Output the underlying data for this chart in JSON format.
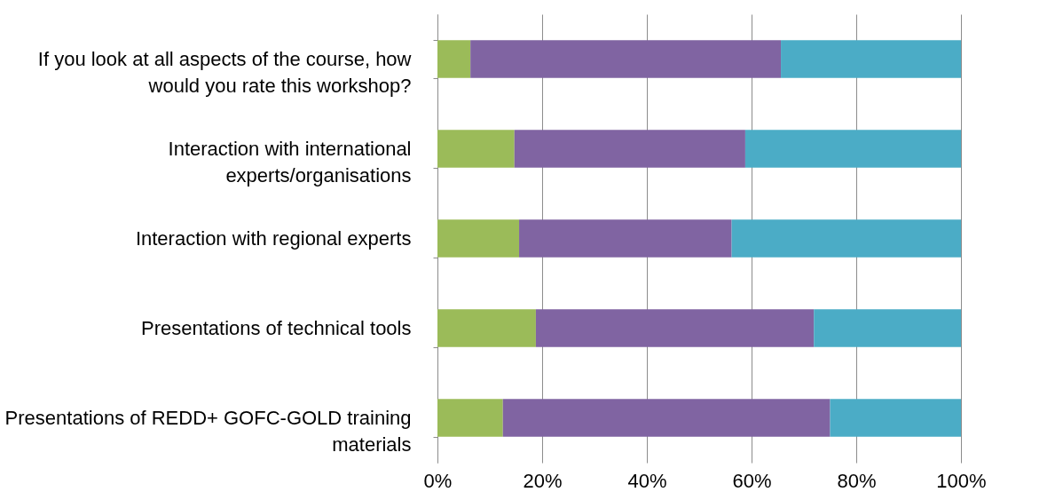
{
  "chart_data": {
    "type": "bar",
    "orientation": "horizontal",
    "stacked": true,
    "categories": [
      "If you look at all aspects of the course, how would you rate this workshop?",
      "Interaction with international experts/organisations",
      "Interaction with regional experts",
      "Presentations of technical tools",
      "Presentations of REDD+ GOFC-GOLD training materials"
    ],
    "series": [
      {
        "color": "#9bbb59",
        "values": [
          6.3,
          14.7,
          15.6,
          18.8,
          12.5
        ]
      },
      {
        "color": "#8064a2",
        "values": [
          59.3,
          44.1,
          40.6,
          53.1,
          62.5
        ]
      },
      {
        "color": "#4bacc6",
        "values": [
          34.4,
          41.2,
          43.8,
          28.1,
          25.0
        ]
      }
    ],
    "xlim": [
      0,
      100
    ],
    "xticks": [
      {
        "value": 0,
        "label": "0%"
      },
      {
        "value": 20,
        "label": "20%"
      },
      {
        "value": 40,
        "label": "40%"
      },
      {
        "value": 60,
        "label": "60%"
      },
      {
        "value": 80,
        "label": "80%"
      },
      {
        "value": 100,
        "label": "100%"
      }
    ],
    "grid": "x",
    "legend": false
  }
}
